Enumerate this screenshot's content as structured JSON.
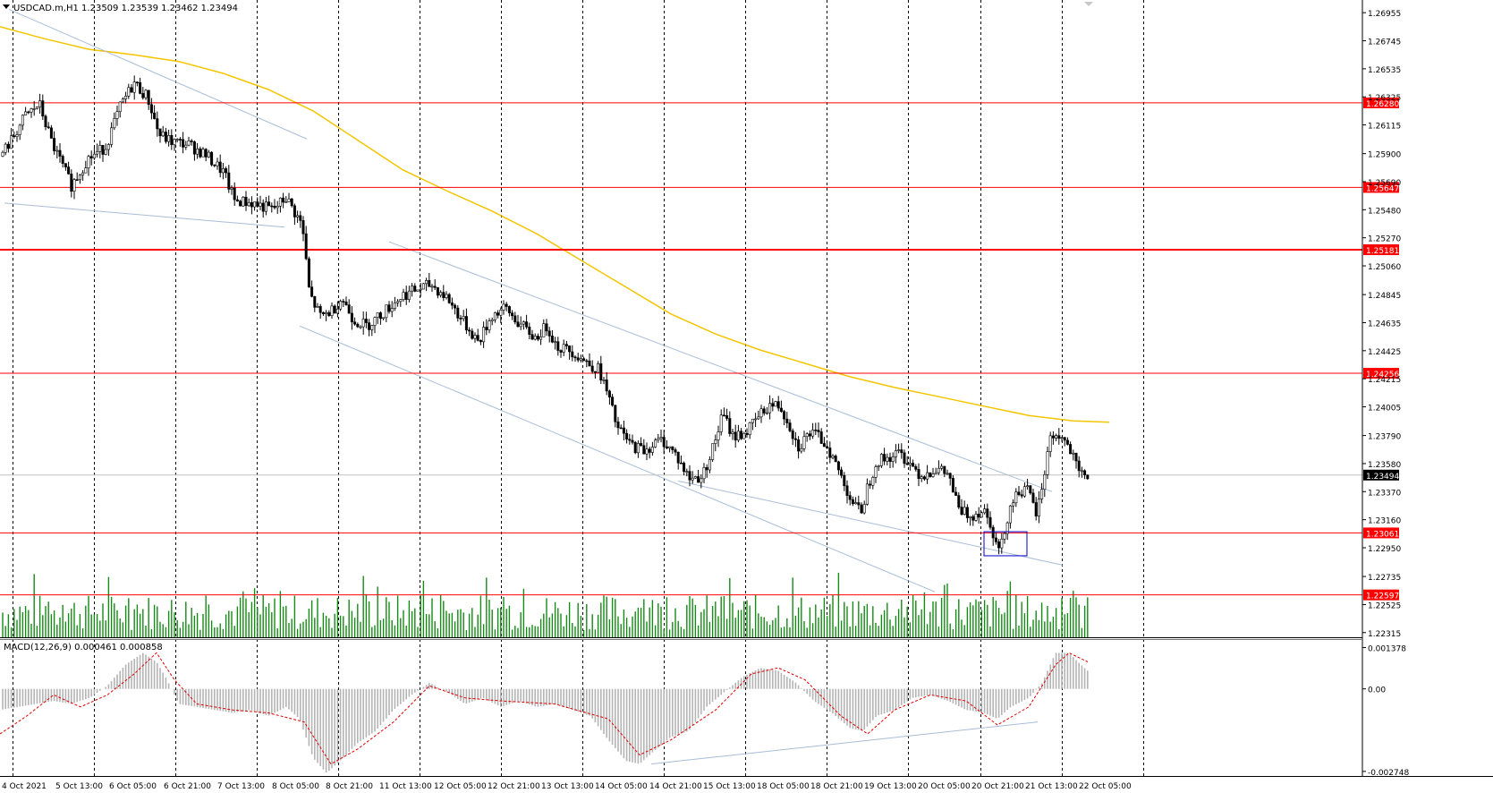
{
  "header": {
    "symbol_info": "USDCAD.m,H1  1.23509 1.23539 1.23462 1.23494",
    "macd_info": "MACD(12,26,9) 0.000461 0.000858"
  },
  "chart_data": {
    "type": "candlestick",
    "symbol": "USDCAD.m",
    "timeframe": "H1",
    "ohlc_last": {
      "open": 1.23509,
      "high": 1.23539,
      "low": 1.23462,
      "close": 1.23494
    },
    "price_axis": {
      "ylim": [
        1.2228,
        1.2705
      ],
      "ticks": [
        1.26955,
        1.26745,
        1.26535,
        1.26325,
        1.26115,
        1.259,
        1.2569,
        1.2548,
        1.2527,
        1.2506,
        1.24845,
        1.24635,
        1.24425,
        1.24215,
        1.24005,
        1.2379,
        1.2358,
        1.2337,
        1.2316,
        1.2295,
        1.22735,
        1.22525,
        1.22315
      ],
      "tick_labels": [
        "1.26955",
        "1.26745",
        "1.26535",
        "1.26325",
        "1.26115",
        "1.25900",
        "1.25690",
        "1.25480",
        "1.25270",
        "1.25060",
        "1.24845",
        "1.24635",
        "1.24425",
        "1.24215",
        "1.24005",
        "1.23790",
        "1.23580",
        "1.23370",
        "1.23160",
        "1.22950",
        "1.22735",
        "1.22525",
        "1.22315"
      ]
    },
    "time_axis": {
      "tick_labels": [
        "4 Oct 2021",
        "5 Oct 13:00",
        "6 Oct 05:00",
        "6 Oct 21:00",
        "7 Oct 13:00",
        "8 Oct 05:00",
        "8 Oct 21:00",
        "11 Oct 13:00",
        "12 Oct 05:00",
        "12 Oct 21:00",
        "13 Oct 13:00",
        "14 Oct 05:00",
        "14 Oct 21:00",
        "15 Oct 13:00",
        "18 Oct 05:00",
        "18 Oct 21:00",
        "19 Oct 13:00",
        "20 Oct 05:00",
        "20 Oct 21:00",
        "21 Oct 13:00",
        "22 Oct 05:00"
      ]
    },
    "key_prices": [
      {
        "value": 1.2628,
        "label": "1.26280",
        "color": "#ff0000",
        "line_width": 1
      },
      {
        "value": 1.25647,
        "label": "1.25647",
        "color": "#ff0000",
        "line_width": 1
      },
      {
        "value": 1.25181,
        "label": "1.25181",
        "color": "#ff0000",
        "line_width": 2
      },
      {
        "value": 1.24256,
        "label": "1.24256",
        "color": "#ff0000",
        "line_width": 1
      },
      {
        "value": 1.23061,
        "label": "1.23061",
        "color": "#ff0000",
        "line_width": 1
      },
      {
        "value": 1.22597,
        "label": "1.22597",
        "color": "#ff0000",
        "line_width": 1
      }
    ],
    "current_price": {
      "value": 1.23494,
      "label": "1.23494"
    },
    "price_path": [
      [
        0,
        1.2588
      ],
      [
        12,
        1.2599
      ],
      [
        28,
        1.2618
      ],
      [
        44,
        1.2627
      ],
      [
        58,
        1.2598
      ],
      [
        80,
        1.2566
      ],
      [
        98,
        1.2586
      ],
      [
        118,
        1.2595
      ],
      [
        135,
        1.2626
      ],
      [
        150,
        1.2643
      ],
      [
        165,
        1.2632
      ],
      [
        178,
        1.2604
      ],
      [
        192,
        1.2599
      ],
      [
        210,
        1.2597
      ],
      [
        230,
        1.2589
      ],
      [
        250,
        1.2576
      ],
      [
        262,
        1.2555
      ],
      [
        282,
        1.2553
      ],
      [
        305,
        1.2548
      ],
      [
        320,
        1.2557
      ],
      [
        338,
        1.2536
      ],
      [
        346,
        1.2485
      ],
      [
        358,
        1.2468
      ],
      [
        372,
        1.2473
      ],
      [
        382,
        1.2482
      ],
      [
        395,
        1.2466
      ],
      [
        410,
        1.2461
      ],
      [
        430,
        1.2472
      ],
      [
        450,
        1.2484
      ],
      [
        465,
        1.2488
      ],
      [
        482,
        1.2492
      ],
      [
        500,
        1.2482
      ],
      [
        518,
        1.2464
      ],
      [
        535,
        1.2449
      ],
      [
        550,
        1.2469
      ],
      [
        565,
        1.2474
      ],
      [
        580,
        1.2463
      ],
      [
        598,
        1.2452
      ],
      [
        612,
        1.2461
      ],
      [
        622,
        1.2446
      ],
      [
        640,
        1.2442
      ],
      [
        655,
        1.2434
      ],
      [
        670,
        1.2428
      ],
      [
        680,
        1.2408
      ],
      [
        690,
        1.2385
      ],
      [
        705,
        1.2372
      ],
      [
        720,
        1.2368
      ],
      [
        740,
        1.2376
      ],
      [
        755,
        1.2365
      ],
      [
        770,
        1.2347
      ],
      [
        785,
        1.2348
      ],
      [
        798,
        1.2372
      ],
      [
        808,
        1.2395
      ],
      [
        820,
        1.2378
      ],
      [
        835,
        1.2382
      ],
      [
        848,
        1.2393
      ],
      [
        860,
        1.2402
      ],
      [
        872,
        1.2401
      ],
      [
        882,
        1.2388
      ],
      [
        892,
        1.237
      ],
      [
        905,
        1.2381
      ],
      [
        915,
        1.2378
      ],
      [
        925,
        1.2371
      ],
      [
        940,
        1.2349
      ],
      [
        952,
        1.233
      ],
      [
        962,
        1.2321
      ],
      [
        970,
        1.2341
      ],
      [
        980,
        1.236
      ],
      [
        992,
        1.2362
      ],
      [
        1005,
        1.2366
      ],
      [
        1018,
        1.2358
      ],
      [
        1030,
        1.2349
      ],
      [
        1045,
        1.2354
      ],
      [
        1060,
        1.235
      ],
      [
        1072,
        1.2323
      ],
      [
        1085,
        1.2319
      ],
      [
        1100,
        1.2324
      ],
      [
        1108,
        1.2313
      ],
      [
        1115,
        1.2293
      ],
      [
        1120,
        1.2298
      ],
      [
        1128,
        1.2324
      ],
      [
        1138,
        1.2338
      ],
      [
        1150,
        1.2337
      ],
      [
        1158,
        1.232
      ],
      [
        1166,
        1.2341
      ],
      [
        1172,
        1.2375
      ],
      [
        1180,
        1.238
      ],
      [
        1190,
        1.2375
      ],
      [
        1198,
        1.2365
      ],
      [
        1206,
        1.235
      ],
      [
        1216,
        1.2349
      ]
    ],
    "moving_average": [
      [
        0,
        1.2685
      ],
      [
        50,
        1.2676
      ],
      [
        100,
        1.2668
      ],
      [
        150,
        1.2664
      ],
      [
        200,
        1.2659
      ],
      [
        250,
        1.265
      ],
      [
        300,
        1.2638
      ],
      [
        350,
        1.2622
      ],
      [
        400,
        1.26
      ],
      [
        450,
        1.2578
      ],
      [
        500,
        1.2562
      ],
      [
        550,
        1.2547
      ],
      [
        600,
        1.253
      ],
      [
        650,
        1.251
      ],
      [
        700,
        1.249
      ],
      [
        750,
        1.247
      ],
      [
        800,
        1.2455
      ],
      [
        850,
        1.2443
      ],
      [
        900,
        1.2433
      ],
      [
        950,
        1.2423
      ],
      [
        1000,
        1.2415
      ],
      [
        1050,
        1.2408
      ],
      [
        1100,
        1.2401
      ],
      [
        1150,
        1.2394
      ],
      [
        1200,
        1.239
      ],
      [
        1240,
        1.2389
      ]
    ],
    "trendlines": [
      {
        "p1": [
          10,
          1.2698
        ],
        "p2": [
          343,
          1.2601
        ]
      },
      {
        "p1": [
          5,
          1.2553
        ],
        "p2": [
          318,
          1.2535
        ]
      },
      {
        "p1": [
          435,
          1.2524
        ],
        "p2": [
          1176,
          1.2337
        ]
      },
      {
        "p1": [
          335,
          1.2461
        ],
        "p2": [
          1045,
          1.2262
        ]
      },
      {
        "p1": [
          758,
          1.2345
        ],
        "p2": [
          1188,
          1.2282
        ]
      }
    ],
    "marked_zone": {
      "x": [
        1100,
        1148
      ],
      "y": [
        1.2289,
        1.2307
      ],
      "color": "#0000cc"
    },
    "macd": {
      "title": "MACD(12,26,9) 0.000461 0.000858",
      "ylim": [
        -0.0029,
        0.0016
      ],
      "tick_labels": [
        "0.001378",
        "0.00",
        "-0.002748"
      ],
      "ticks": [
        0.001378,
        0.0,
        -0.002748
      ],
      "histogram_path": [
        [
          0,
          -0.0007
        ],
        [
          20,
          -0.0006
        ],
        [
          40,
          -0.0005
        ],
        [
          60,
          -0.0004
        ],
        [
          80,
          -0.0005
        ],
        [
          100,
          -0.0003
        ],
        [
          120,
          0.0001
        ],
        [
          140,
          0.0008
        ],
        [
          160,
          0.0012
        ],
        [
          175,
          0.0009
        ],
        [
          185,
          0.0004
        ],
        [
          200,
          -0.0005
        ],
        [
          220,
          -0.0006
        ],
        [
          240,
          -0.0007
        ],
        [
          260,
          -0.0008
        ],
        [
          280,
          -0.0007
        ],
        [
          300,
          -0.0009
        ],
        [
          320,
          -0.0006
        ],
        [
          335,
          -0.001
        ],
        [
          350,
          -0.0023
        ],
        [
          365,
          -0.0028
        ],
        [
          380,
          -0.0024
        ],
        [
          400,
          -0.0018
        ],
        [
          420,
          -0.0014
        ],
        [
          440,
          -0.0007
        ],
        [
          460,
          -0.0002
        ],
        [
          480,
          0.0002
        ],
        [
          500,
          -0.0001
        ],
        [
          520,
          -0.0005
        ],
        [
          540,
          -0.0003
        ],
        [
          560,
          -0.0006
        ],
        [
          580,
          -0.0004
        ],
        [
          600,
          -0.0006
        ],
        [
          620,
          -0.0005
        ],
        [
          640,
          -0.0007
        ],
        [
          660,
          -0.0009
        ],
        [
          680,
          -0.0017
        ],
        [
          700,
          -0.0024
        ],
        [
          715,
          -0.0025
        ],
        [
          730,
          -0.0021
        ],
        [
          750,
          -0.0016
        ],
        [
          770,
          -0.0014
        ],
        [
          790,
          -0.0006
        ],
        [
          810,
          -0.0001
        ],
        [
          830,
          0.0004
        ],
        [
          850,
          0.0007
        ],
        [
          870,
          0.0006
        ],
        [
          890,
          0.0002
        ],
        [
          910,
          -0.0004
        ],
        [
          930,
          -0.0008
        ],
        [
          950,
          -0.0013
        ],
        [
          965,
          -0.0014
        ],
        [
          980,
          -0.0009
        ],
        [
          1000,
          -0.0007
        ],
        [
          1020,
          -0.0003
        ],
        [
          1040,
          -0.0002
        ],
        [
          1060,
          -0.0004
        ],
        [
          1080,
          -0.0007
        ],
        [
          1100,
          -0.0008
        ],
        [
          1115,
          -0.001
        ],
        [
          1130,
          -0.0006
        ],
        [
          1150,
          -0.0003
        ],
        [
          1165,
          0.0002
        ],
        [
          1180,
          0.0012
        ],
        [
          1195,
          0.0012
        ],
        [
          1205,
          0.0009
        ],
        [
          1216,
          0.0006
        ]
      ],
      "signal_path": [
        [
          0,
          -0.0015
        ],
        [
          30,
          -0.0009
        ],
        [
          60,
          -0.0002
        ],
        [
          90,
          -0.0006
        ],
        [
          120,
          -0.0002
        ],
        [
          150,
          0.0005
        ],
        [
          175,
          0.0012
        ],
        [
          195,
          0.0003
        ],
        [
          220,
          -0.0005
        ],
        [
          260,
          -0.0007
        ],
        [
          300,
          -0.0008
        ],
        [
          340,
          -0.0011
        ],
        [
          370,
          -0.0025
        ],
        [
          400,
          -0.002
        ],
        [
          440,
          -0.0011
        ],
        [
          480,
          0.0001
        ],
        [
          520,
          -0.0003
        ],
        [
          560,
          -0.0004
        ],
        [
          620,
          -0.0005
        ],
        [
          680,
          -0.001
        ],
        [
          715,
          -0.0022
        ],
        [
          750,
          -0.0017
        ],
        [
          800,
          -0.0007
        ],
        [
          840,
          0.0005
        ],
        [
          870,
          0.0007
        ],
        [
          900,
          0.0003
        ],
        [
          940,
          -0.0009
        ],
        [
          970,
          -0.0015
        ],
        [
          1000,
          -0.0007
        ],
        [
          1040,
          -0.0002
        ],
        [
          1080,
          -0.0004
        ],
        [
          1115,
          -0.0012
        ],
        [
          1150,
          -0.0006
        ],
        [
          1180,
          0.0008
        ],
        [
          1195,
          0.0012
        ],
        [
          1216,
          0.0009
        ]
      ],
      "trendline": {
        "p1": [
          728,
          -0.0025
        ],
        "p2": [
          1160,
          -0.0011
        ]
      }
    },
    "volume_ylim": [
      0,
      100
    ]
  }
}
